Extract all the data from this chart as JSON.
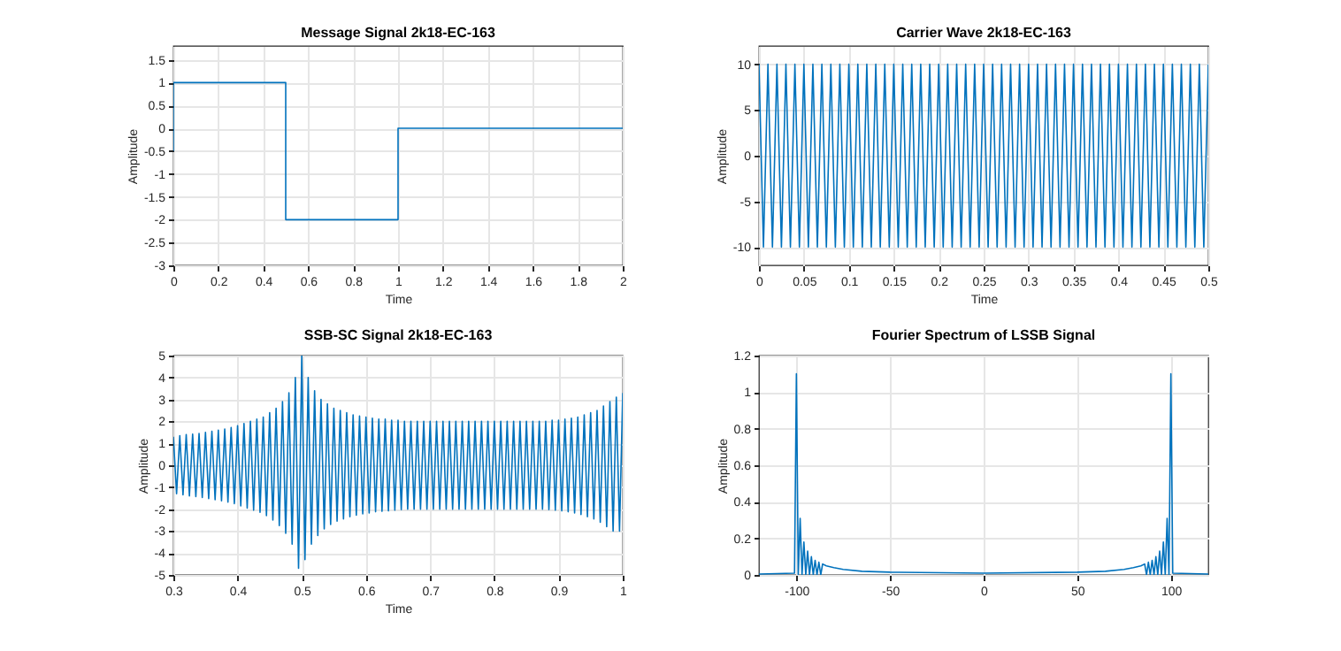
{
  "chart_data": [
    {
      "type": "line",
      "title": "Message Signal 2k18-EC-163",
      "xlabel": "Time",
      "ylabel": "Amplitude",
      "x": [
        0,
        0,
        0.5,
        0.5,
        1,
        1,
        2
      ],
      "series": [
        {
          "color": "#0072bd",
          "values": [
            -0.5,
            1,
            1,
            -2,
            -2,
            0,
            0
          ]
        }
      ],
      "xlim": [
        0,
        2
      ],
      "xticks": [
        0,
        0.2,
        0.4,
        0.6,
        0.8,
        1,
        1.2,
        1.4,
        1.6,
        1.8,
        2
      ],
      "ylim": [
        -3,
        1.8
      ],
      "yticks": [
        -3,
        -2.5,
        -2,
        -1.5,
        -1,
        -0.5,
        0,
        0.5,
        1,
        1.5
      ],
      "grid": true
    },
    {
      "type": "line",
      "title": "Carrier Wave 2k18-EC-163",
      "xlabel": "Time",
      "ylabel": "Amplitude",
      "x": [
        0,
        0.005,
        0.01,
        0.015,
        0.02,
        0.025,
        0.03,
        0.035,
        0.04,
        0.045,
        0.05,
        0.055,
        0.06,
        0.065,
        0.07,
        0.075,
        0.08,
        0.085,
        0.09,
        0.095,
        0.1,
        0.105,
        0.11,
        0.115,
        0.12,
        0.125,
        0.13,
        0.135,
        0.14,
        0.145,
        0.15,
        0.155,
        0.16,
        0.165,
        0.17,
        0.175,
        0.18,
        0.185,
        0.19,
        0.195,
        0.2,
        0.205,
        0.21,
        0.215,
        0.22,
        0.225,
        0.23,
        0.235,
        0.24,
        0.245,
        0.25,
        0.255,
        0.26,
        0.265,
        0.27,
        0.275,
        0.28,
        0.285,
        0.29,
        0.295,
        0.3,
        0.305,
        0.31,
        0.315,
        0.32,
        0.325,
        0.33,
        0.335,
        0.34,
        0.345,
        0.35,
        0.355,
        0.36,
        0.365,
        0.37,
        0.375,
        0.38,
        0.385,
        0.39,
        0.395,
        0.4,
        0.405,
        0.41,
        0.415,
        0.42,
        0.425,
        0.43,
        0.435,
        0.44,
        0.445,
        0.45,
        0.455,
        0.46,
        0.465,
        0.47,
        0.475,
        0.48,
        0.485,
        0.49,
        0.495,
        0.5
      ],
      "series": [
        {
          "color": "#0072bd",
          "values": [
            10,
            -10,
            10,
            -10,
            10,
            -10,
            10,
            -10,
            10,
            -10,
            10,
            -10,
            10,
            -10,
            10,
            -10,
            10,
            -10,
            10,
            -10,
            10,
            -10,
            10,
            -10,
            10,
            -10,
            10,
            -10,
            10,
            -10,
            10,
            -10,
            10,
            -10,
            10,
            -10,
            10,
            -10,
            10,
            -10,
            10,
            -10,
            10,
            -10,
            10,
            -10,
            10,
            -10,
            10,
            -10,
            10,
            -10,
            10,
            -10,
            10,
            -10,
            10,
            -10,
            10,
            -10,
            10,
            -10,
            10,
            -10,
            10,
            -10,
            10,
            -10,
            10,
            -10,
            10,
            -10,
            10,
            -10,
            10,
            -10,
            10,
            -10,
            10,
            -10,
            10,
            -10,
            10,
            -10,
            10,
            -10,
            10,
            -10,
            10,
            -10,
            10,
            -10,
            10,
            -10,
            10,
            -10,
            10,
            -10,
            10,
            -10,
            10
          ]
        }
      ],
      "xlim": [
        0,
        0.5
      ],
      "xticks": [
        0,
        0.05,
        0.1,
        0.15,
        0.2,
        0.25,
        0.3,
        0.35,
        0.4,
        0.45,
        0.5
      ],
      "ylim": [
        -12,
        12
      ],
      "yticks": [
        -10,
        -5,
        0,
        5,
        10
      ],
      "grid": true
    },
    {
      "type": "line",
      "title": "SSB-SC Signal 2k18-EC-163",
      "xlabel": "Time",
      "ylabel": "Amplitude",
      "x": [
        0.3,
        0.305,
        0.31,
        0.315,
        0.32,
        0.325,
        0.33,
        0.335,
        0.34,
        0.345,
        0.35,
        0.355,
        0.36,
        0.365,
        0.37,
        0.375,
        0.38,
        0.385,
        0.39,
        0.395,
        0.4,
        0.405,
        0.41,
        0.415,
        0.42,
        0.425,
        0.43,
        0.435,
        0.44,
        0.445,
        0.45,
        0.455,
        0.46,
        0.465,
        0.47,
        0.475,
        0.48,
        0.485,
        0.49,
        0.495,
        0.5,
        0.505,
        0.51,
        0.515,
        0.52,
        0.525,
        0.53,
        0.535,
        0.54,
        0.545,
        0.55,
        0.555,
        0.56,
        0.565,
        0.57,
        0.575,
        0.58,
        0.585,
        0.59,
        0.595,
        0.6,
        0.605,
        0.61,
        0.615,
        0.62,
        0.625,
        0.63,
        0.635,
        0.64,
        0.645,
        0.65,
        0.655,
        0.66,
        0.665,
        0.67,
        0.675,
        0.68,
        0.685,
        0.69,
        0.695,
        0.7,
        0.705,
        0.71,
        0.715,
        0.72,
        0.725,
        0.73,
        0.735,
        0.74,
        0.745,
        0.75,
        0.755,
        0.76,
        0.765,
        0.77,
        0.775,
        0.78,
        0.785,
        0.79,
        0.795,
        0.8,
        0.805,
        0.81,
        0.815,
        0.82,
        0.825,
        0.83,
        0.835,
        0.84,
        0.845,
        0.85,
        0.855,
        0.86,
        0.865,
        0.87,
        0.875,
        0.88,
        0.885,
        0.89,
        0.895,
        0.9,
        0.905,
        0.91,
        0.915,
        0.92,
        0.925,
        0.93,
        0.935,
        0.94,
        0.945,
        0.95,
        0.955,
        0.96,
        0.965,
        0.97,
        0.975,
        0.98,
        0.985,
        0.99,
        0.995,
        1
      ],
      "series": [
        {
          "color": "#0072bd",
          "values": [
            1.3,
            -1.3,
            1.35,
            -1.35,
            1.4,
            -1.4,
            1.42,
            -1.43,
            1.45,
            -1.47,
            1.5,
            -1.52,
            1.55,
            -1.57,
            1.6,
            -1.62,
            1.65,
            -1.68,
            1.72,
            -1.75,
            1.8,
            -1.85,
            1.9,
            -1.95,
            2,
            -2.05,
            2.1,
            -2.15,
            2.2,
            -2.3,
            2.4,
            -2.5,
            2.6,
            -2.75,
            2.9,
            -3.1,
            3.3,
            -3.6,
            4,
            -4.7,
            5,
            -4.3,
            4,
            -3.6,
            3.4,
            -3.2,
            3,
            -2.9,
            2.8,
            -2.7,
            2.6,
            -2.55,
            2.5,
            -2.45,
            2.4,
            -2.35,
            2.3,
            -2.28,
            2.25,
            -2.22,
            2.2,
            -2.18,
            2.15,
            -2.12,
            2.1,
            -2.1,
            2.1,
            -2.08,
            2.05,
            -2.05,
            2.05,
            -2.02,
            2,
            -2,
            2,
            -2,
            2,
            -2,
            2,
            -2,
            2,
            -2,
            2,
            -2,
            2,
            -2,
            2,
            -2,
            2,
            -2,
            2,
            -2,
            2,
            -2,
            2,
            -2,
            2,
            -2,
            2,
            -2,
            2,
            -2,
            2,
            -2,
            2,
            -2,
            2,
            -2,
            2,
            -2,
            2,
            -2,
            2,
            -2,
            2,
            -2,
            2,
            -2.02,
            2.05,
            -2.05,
            2.05,
            -2.08,
            2.1,
            -2.12,
            2.15,
            -2.18,
            2.2,
            -2.25,
            2.3,
            -2.35,
            2.4,
            -2.45,
            2.5,
            -2.6,
            2.7,
            -2.8,
            2.9,
            -3,
            3.1,
            -3,
            3.3
          ]
        }
      ],
      "xlim": [
        0.3,
        1
      ],
      "xticks": [
        0.3,
        0.4,
        0.5,
        0.6,
        0.7,
        0.8,
        0.9,
        1
      ],
      "ylim": [
        -5,
        5
      ],
      "yticks": [
        -5,
        -4,
        -3,
        -2,
        -1,
        0,
        1,
        2,
        3,
        4,
        5
      ],
      "grid": true
    },
    {
      "type": "line",
      "title": "Fourier Spectrum of LSSB Signal",
      "ylabel": "Amplitude",
      "x": [
        -120,
        -101,
        -100,
        -99,
        -98,
        -97,
        -96,
        -95,
        -94,
        -93,
        -92,
        -91,
        -90,
        -89,
        -88,
        -87,
        -86,
        -84,
        -80,
        -75,
        -65,
        -50,
        0,
        50,
        65,
        75,
        80,
        84,
        86,
        87,
        88,
        89,
        90,
        91,
        92,
        93,
        94,
        95,
        96,
        97,
        98,
        99,
        100,
        101,
        120
      ],
      "series": [
        {
          "color": "#0072bd",
          "values": [
            0.005,
            0.01,
            1.1,
            0,
            0.31,
            0,
            0.18,
            0,
            0.13,
            0,
            0.1,
            0,
            0.08,
            0,
            0.07,
            0,
            0.06,
            0.05,
            0.04,
            0.03,
            0.02,
            0.015,
            0.01,
            0.015,
            0.02,
            0.03,
            0.04,
            0.05,
            0.06,
            0,
            0.07,
            0,
            0.08,
            0,
            0.1,
            0,
            0.13,
            0,
            0.18,
            0,
            0.31,
            0,
            1.1,
            0.01,
            0.005
          ]
        }
      ],
      "xlim": [
        -120,
        120
      ],
      "xticks": [
        -100,
        -50,
        0,
        50,
        100
      ],
      "ylim": [
        0,
        1.2
      ],
      "yticks": [
        0,
        0.2,
        0.4,
        0.6,
        0.8,
        1,
        1.2
      ],
      "grid": true
    }
  ]
}
